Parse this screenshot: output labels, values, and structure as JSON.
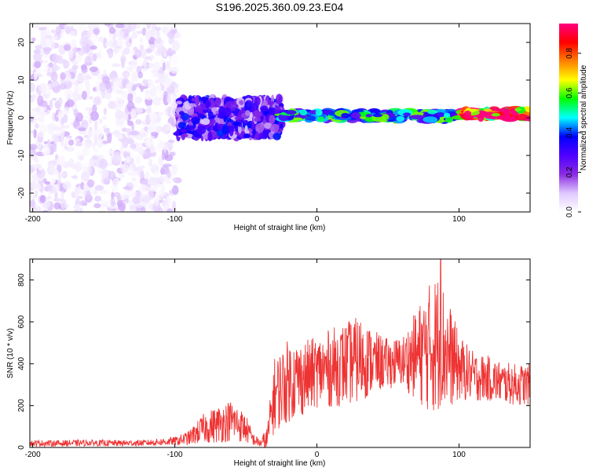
{
  "title": "S196.2025.360.09.23.E04",
  "chart_data": [
    {
      "type": "heatmap",
      "title": "S196.2025.360.09.23.E04",
      "xlabel": "Height of straight line (km)",
      "ylabel": "Frequency (Hz)",
      "xlim": [
        -202,
        150
      ],
      "ylim": [
        -25,
        25
      ],
      "xticks": [
        -200,
        -100,
        0,
        100
      ],
      "yticks": [
        -20,
        -10,
        0,
        10,
        20
      ],
      "colorbar": {
        "label": "Normalized spectral amplitude",
        "range": [
          0.0,
          0.95
        ],
        "ticks": [
          0.0,
          0.2,
          0.4,
          0.6,
          0.8
        ],
        "colormap": [
          "#ffffff",
          "#e0c8ff",
          "#8a2be2",
          "#5000ff",
          "#0000ff",
          "#00ffff",
          "#00ff00",
          "#ffff00",
          "#ff8000",
          "#ff0000",
          "#ff0080"
        ]
      },
      "features": [
        {
          "x_range": [
            -202,
            -98
          ],
          "freq_range": [
            -25,
            25
          ],
          "amplitude": 0.06,
          "description": "diffuse noise"
        },
        {
          "x_range": [
            -98,
            -25
          ],
          "freq_range": [
            -5,
            5
          ],
          "amplitude": 0.2
        },
        {
          "x_range": [
            -25,
            100
          ],
          "freq_center": 0.5,
          "amplitude": 0.45
        },
        {
          "x_range": [
            100,
            150
          ],
          "freq_center": 1.0,
          "amplitude": 0.9
        }
      ]
    },
    {
      "type": "line",
      "xlabel": "Height of straight line (km)",
      "ylabel": "SNR (10 * v/v)",
      "xlim": [
        -202,
        150
      ],
      "ylim": [
        0,
        900
      ],
      "xticks": [
        -200,
        -100,
        0,
        100
      ],
      "yticks": [
        0,
        200,
        400,
        600,
        800
      ],
      "color": "#ee3333",
      "x": [
        -202,
        -180,
        -160,
        -140,
        -120,
        -100,
        -90,
        -80,
        -70,
        -60,
        -50,
        -45,
        -40,
        -35,
        -30,
        -20,
        -10,
        0,
        10,
        20,
        30,
        40,
        50,
        60,
        70,
        80,
        85,
        90,
        100,
        110,
        120,
        130,
        140,
        150
      ],
      "y": [
        20,
        20,
        22,
        20,
        22,
        30,
        45,
        90,
        110,
        130,
        90,
        40,
        20,
        40,
        250,
        320,
        330,
        360,
        380,
        400,
        420,
        410,
        400,
        410,
        440,
        480,
        500,
        470,
        380,
        340,
        330,
        310,
        300,
        300
      ],
      "spread": [
        15,
        15,
        15,
        15,
        15,
        20,
        35,
        70,
        90,
        100,
        70,
        30,
        20,
        60,
        180,
        200,
        180,
        170,
        190,
        200,
        210,
        150,
        120,
        120,
        220,
        320,
        340,
        300,
        160,
        120,
        110,
        100,
        100,
        100
      ],
      "peak": {
        "x": 87,
        "y": 900
      }
    }
  ]
}
